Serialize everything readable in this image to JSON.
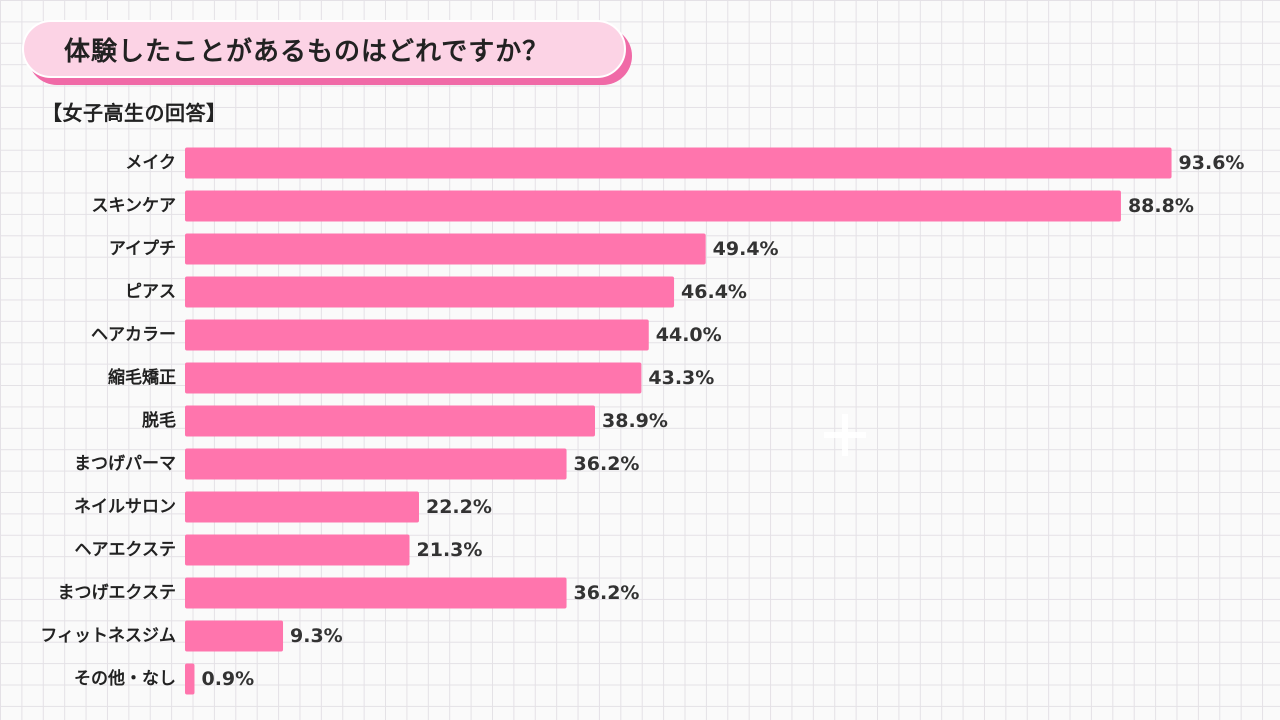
{
  "title": "体験したことがあるものはどれですか？",
  "subtitle": "【女子高生の回答】",
  "colors": {
    "bar": "#ff75ad",
    "pill": "#fcd3e5",
    "pill_shadow": "#f06aa7"
  },
  "chart_data": {
    "type": "bar",
    "orientation": "horizontal",
    "title": "体験したことがあるものはどれですか？",
    "subtitle": "【女子高生の回答】",
    "categories": [
      "メイク",
      "スキンケア",
      "アイプチ",
      "ピアス",
      "ヘアカラー",
      "縮毛矯正",
      "脱毛",
      "まつげパーマ",
      "ネイルサロン",
      "ヘアエクステ",
      "まつげエクステ",
      "フィットネスジム",
      "その他・なし"
    ],
    "values": [
      93.6,
      88.8,
      49.4,
      46.4,
      44.0,
      43.3,
      38.9,
      36.2,
      22.2,
      21.3,
      36.2,
      9.3,
      0.9
    ],
    "value_labels": [
      "93.6%",
      "88.8%",
      "49.4%",
      "46.4%",
      "44.0%",
      "43.3%",
      "38.9%",
      "36.2%",
      "22.2%",
      "21.3%",
      "36.2%",
      "9.3%",
      "0.9%"
    ],
    "unit": "%",
    "xlim": [
      0,
      100
    ],
    "grid": true,
    "legend": "none"
  }
}
